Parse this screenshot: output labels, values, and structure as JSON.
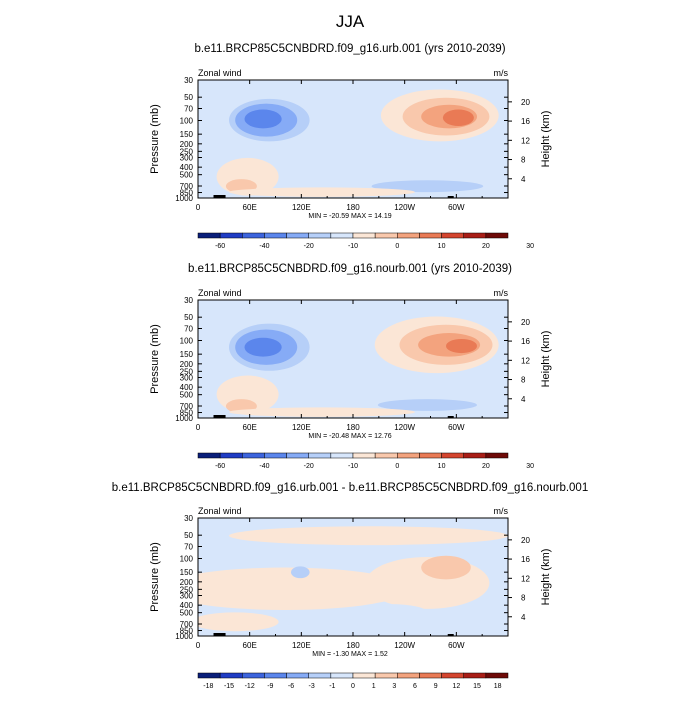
{
  "main_title": "JJA",
  "colors": {
    "palette": [
      "#0a1f7a",
      "#1f3cc4",
      "#3c64dd",
      "#5b86ec",
      "#86abf6",
      "#b6cff8",
      "#d7e6fb",
      "#fbe6d6",
      "#f9c8ac",
      "#f3a37e",
      "#e97a55",
      "#d4452e",
      "#a81d16",
      "#6e0a08"
    ],
    "background": "#d7e6fb"
  },
  "chart_data": [
    {
      "type": "contour",
      "title": "b.e11.BRCP85C5CNBDRD.f09_g16.urb.001 (yrs 2010-2039)",
      "left_label": "Zonal wind",
      "right_label": "m/s",
      "ylabel": "Pressure (mb)",
      "ylabel_right": "Height (km)",
      "x_ticks": [
        "0",
        "60E",
        "120E",
        "180",
        "120W",
        "60W"
      ],
      "y_ticks": [
        "30",
        "50",
        "70",
        "100",
        "150",
        "200",
        "250",
        "300",
        "400",
        "500",
        "700",
        "850",
        "1000"
      ],
      "y_ticks_right": [
        "20",
        "16",
        "12",
        "8",
        "4"
      ],
      "stats": "MIN = -20.59  MAX =  14.19",
      "min": -20.59,
      "max": 14.19,
      "colorbar_labels": [
        "-60",
        "-40",
        "-20",
        "-10",
        "0",
        "10",
        "20",
        "30"
      ]
    },
    {
      "type": "contour",
      "title": "b.e11.BRCP85C5CNBDRD.f09_g16.nourb.001 (yrs 2010-2039)",
      "left_label": "Zonal wind",
      "right_label": "m/s",
      "ylabel": "Pressure (mb)",
      "ylabel_right": "Height (km)",
      "x_ticks": [
        "0",
        "60E",
        "120E",
        "180",
        "120W",
        "60W"
      ],
      "y_ticks": [
        "30",
        "50",
        "70",
        "100",
        "150",
        "200",
        "250",
        "300",
        "400",
        "500",
        "700",
        "850",
        "1000"
      ],
      "y_ticks_right": [
        "20",
        "16",
        "12",
        "8",
        "4"
      ],
      "stats": "MIN = -20.48  MAX =  12.76",
      "min": -20.48,
      "max": 12.76,
      "colorbar_labels": [
        "-60",
        "-40",
        "-20",
        "-10",
        "0",
        "10",
        "20",
        "30"
      ]
    },
    {
      "type": "contour",
      "title": "b.e11.BRCP85C5CNBDRD.f09_g16.urb.001 - b.e11.BRCP85C5CNBDRD.f09_g16.nourb.001",
      "left_label": "Zonal wind",
      "right_label": "m/s",
      "ylabel": "Pressure (mb)",
      "ylabel_right": "Height (km)",
      "x_ticks": [
        "0",
        "60E",
        "120E",
        "180",
        "120W",
        "60W"
      ],
      "y_ticks": [
        "30",
        "50",
        "70",
        "100",
        "150",
        "200",
        "250",
        "300",
        "400",
        "500",
        "700",
        "850",
        "1000"
      ],
      "y_ticks_right": [
        "20",
        "16",
        "12",
        "8",
        "4"
      ],
      "stats": "MIN = -1.30  MAX =  1.52",
      "min": -1.3,
      "max": 1.52,
      "colorbar_labels": [
        "-18",
        "-15",
        "-12",
        "-9",
        "-6",
        "-3",
        "-1",
        "0",
        "1",
        "3",
        "6",
        "9",
        "12",
        "15",
        "18"
      ]
    }
  ]
}
